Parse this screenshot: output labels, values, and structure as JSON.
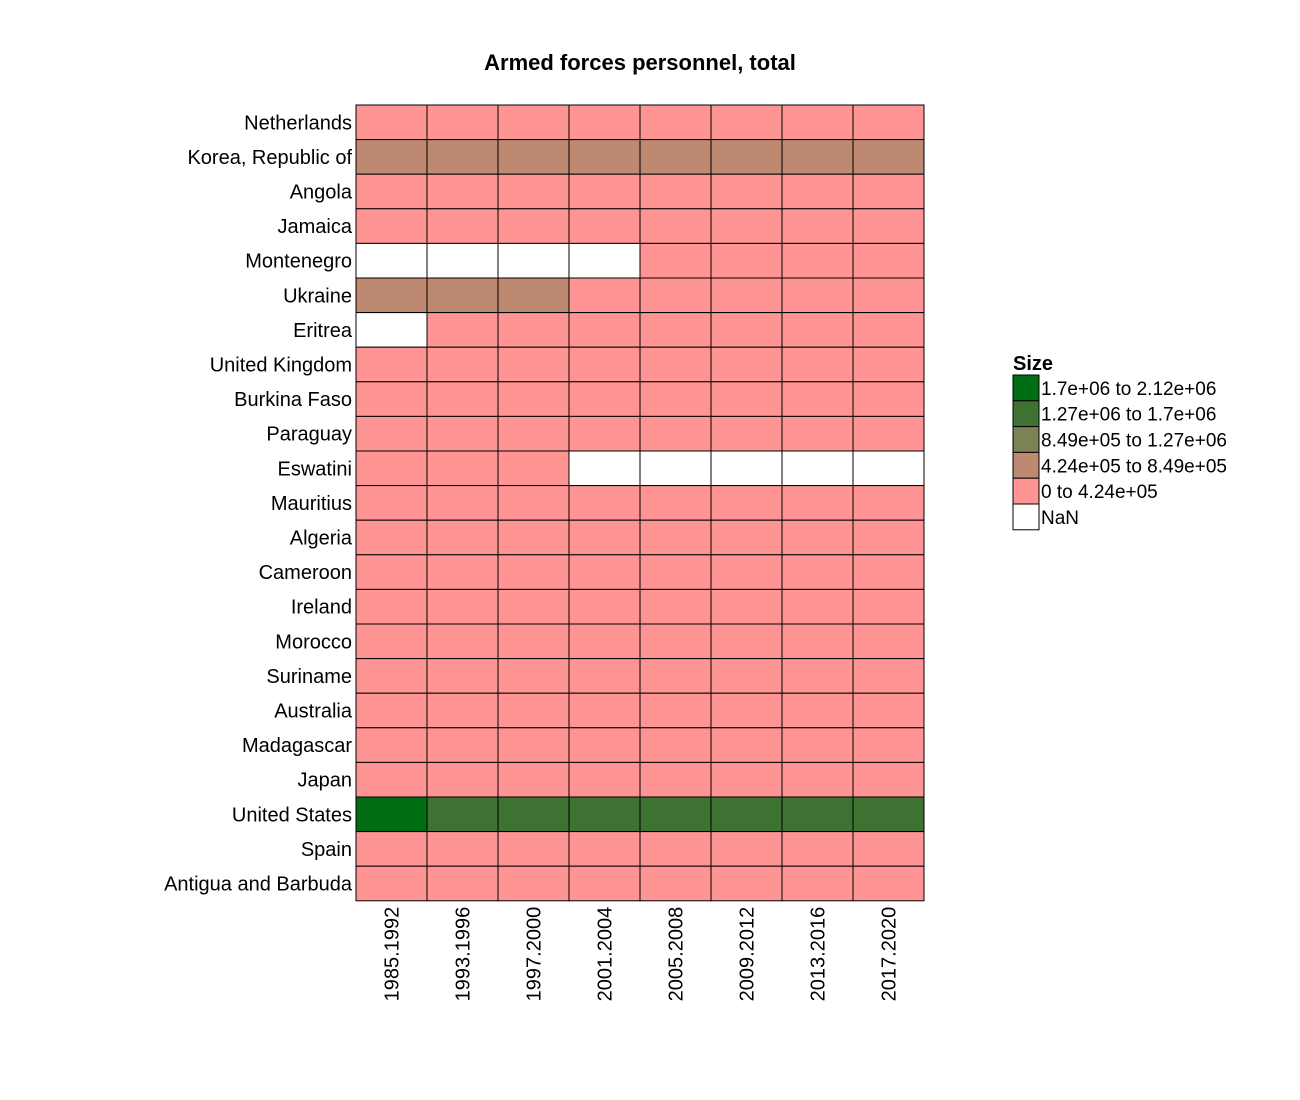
{
  "chart_data": {
    "type": "heatmap",
    "title": "Armed forces personnel, total",
    "xlabel": "",
    "ylabel": "",
    "columns": [
      "1985.1992",
      "1993.1996",
      "1997.2000",
      "2001.2004",
      "2005.2008",
      "2009.2012",
      "2013.2016",
      "2017.2020"
    ],
    "rows": [
      "Netherlands",
      "Korea, Republic of",
      "Angola",
      "Jamaica",
      "Montenegro",
      "Ukraine",
      "Eritrea",
      "United Kingdom",
      "Burkina Faso",
      "Paraguay",
      "Eswatini",
      "Mauritius",
      "Algeria",
      "Cameroon",
      "Ireland",
      "Morocco",
      "Suriname",
      "Australia",
      "Madagascar",
      "Japan",
      "United States",
      "Spain",
      "Antigua and Barbuda"
    ],
    "legend": {
      "title": "Size",
      "position": "right",
      "bins": [
        {
          "label": "1.7e+06 to 2.12e+06",
          "color": "#006d14"
        },
        {
          "label": "1.27e+06 to 1.7e+06",
          "color": "#3d7233"
        },
        {
          "label": "8.49e+05 to 1.27e+06",
          "color": "#7d8156"
        },
        {
          "label": "4.24e+05 to 8.49e+05",
          "color": "#bd8971"
        },
        {
          "label": "0 to 4.24e+05",
          "color": "#fe9494"
        },
        {
          "label": "NaN",
          "color": "#ffffff"
        }
      ]
    },
    "bin_index_note_values": "cell values are legend bin indices: 0=highest bin ... 4=lowest bin, 5=NaN",
    "cells": [
      [
        4,
        4,
        4,
        4,
        4,
        4,
        4,
        4
      ],
      [
        3,
        3,
        3,
        3,
        3,
        3,
        3,
        3
      ],
      [
        4,
        4,
        4,
        4,
        4,
        4,
        4,
        4
      ],
      [
        4,
        4,
        4,
        4,
        4,
        4,
        4,
        4
      ],
      [
        5,
        5,
        5,
        5,
        4,
        4,
        4,
        4
      ],
      [
        3,
        3,
        3,
        4,
        4,
        4,
        4,
        4
      ],
      [
        5,
        4,
        4,
        4,
        4,
        4,
        4,
        4
      ],
      [
        4,
        4,
        4,
        4,
        4,
        4,
        4,
        4
      ],
      [
        4,
        4,
        4,
        4,
        4,
        4,
        4,
        4
      ],
      [
        4,
        4,
        4,
        4,
        4,
        4,
        4,
        4
      ],
      [
        4,
        4,
        4,
        5,
        5,
        5,
        5,
        5
      ],
      [
        4,
        4,
        4,
        4,
        4,
        4,
        4,
        4
      ],
      [
        4,
        4,
        4,
        4,
        4,
        4,
        4,
        4
      ],
      [
        4,
        4,
        4,
        4,
        4,
        4,
        4,
        4
      ],
      [
        4,
        4,
        4,
        4,
        4,
        4,
        4,
        4
      ],
      [
        4,
        4,
        4,
        4,
        4,
        4,
        4,
        4
      ],
      [
        4,
        4,
        4,
        4,
        4,
        4,
        4,
        4
      ],
      [
        4,
        4,
        4,
        4,
        4,
        4,
        4,
        4
      ],
      [
        4,
        4,
        4,
        4,
        4,
        4,
        4,
        4
      ],
      [
        4,
        4,
        4,
        4,
        4,
        4,
        4,
        4
      ],
      [
        0,
        1,
        1,
        1,
        1,
        1,
        1,
        1
      ],
      [
        4,
        4,
        4,
        4,
        4,
        4,
        4,
        4
      ],
      [
        4,
        4,
        4,
        4,
        4,
        4,
        4,
        4
      ]
    ],
    "grid": true
  }
}
